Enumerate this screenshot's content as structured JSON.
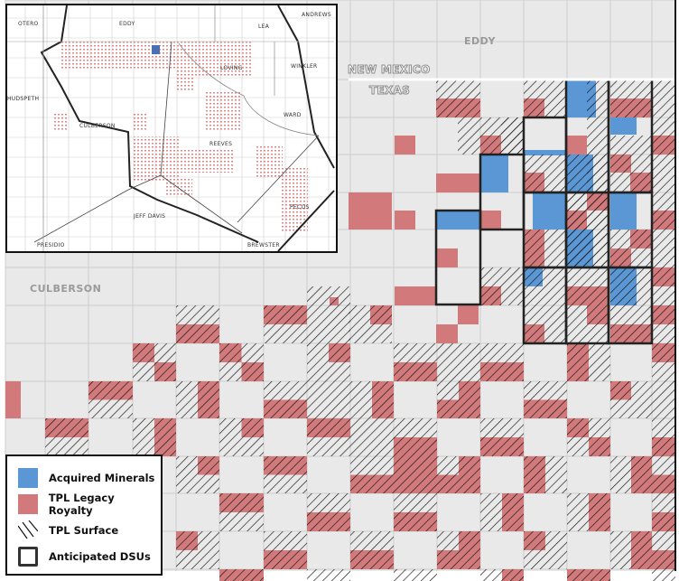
{
  "map": {
    "labels": {
      "eddy": "EDDY",
      "new_mexico": "NEW MEXICO",
      "texas": "TEXAS",
      "culberson": "CULBERSON"
    },
    "colors": {
      "background": "#e9e9e9",
      "grid": "#cdcdcd",
      "acquired_minerals": "#5b97d4",
      "tpl_legacy_royalty": "#d27a7b",
      "dsu_outline": "#222222"
    }
  },
  "inset": {
    "labels": {
      "otero": "OTERO",
      "eddy": "EDDY",
      "lea": "LEA",
      "andrews": "ANDREWS",
      "loving": "LOVING",
      "winkler": "WINKLER",
      "hudspeth": "HUDSPETH",
      "ward": "WARD",
      "culberson": "CULBERSON",
      "reeves": "REEVES",
      "pecos": "PECOS",
      "jeff_davis": "JEFF DAVIS",
      "presidio": "PRESIDIO",
      "brewster": "BREWSTER"
    }
  },
  "legend": {
    "items": [
      {
        "label": "Acquired Minerals",
        "icon": "blue-square",
        "color": "#5b97d4"
      },
      {
        "label": "TPL Legacy Royalty",
        "icon": "red-square",
        "color": "#d27a7b"
      },
      {
        "label": "TPL Surface",
        "icon": "diagonal-hatch"
      },
      {
        "label": "Anticipated DSUs",
        "icon": "outlined-square"
      }
    ]
  }
}
